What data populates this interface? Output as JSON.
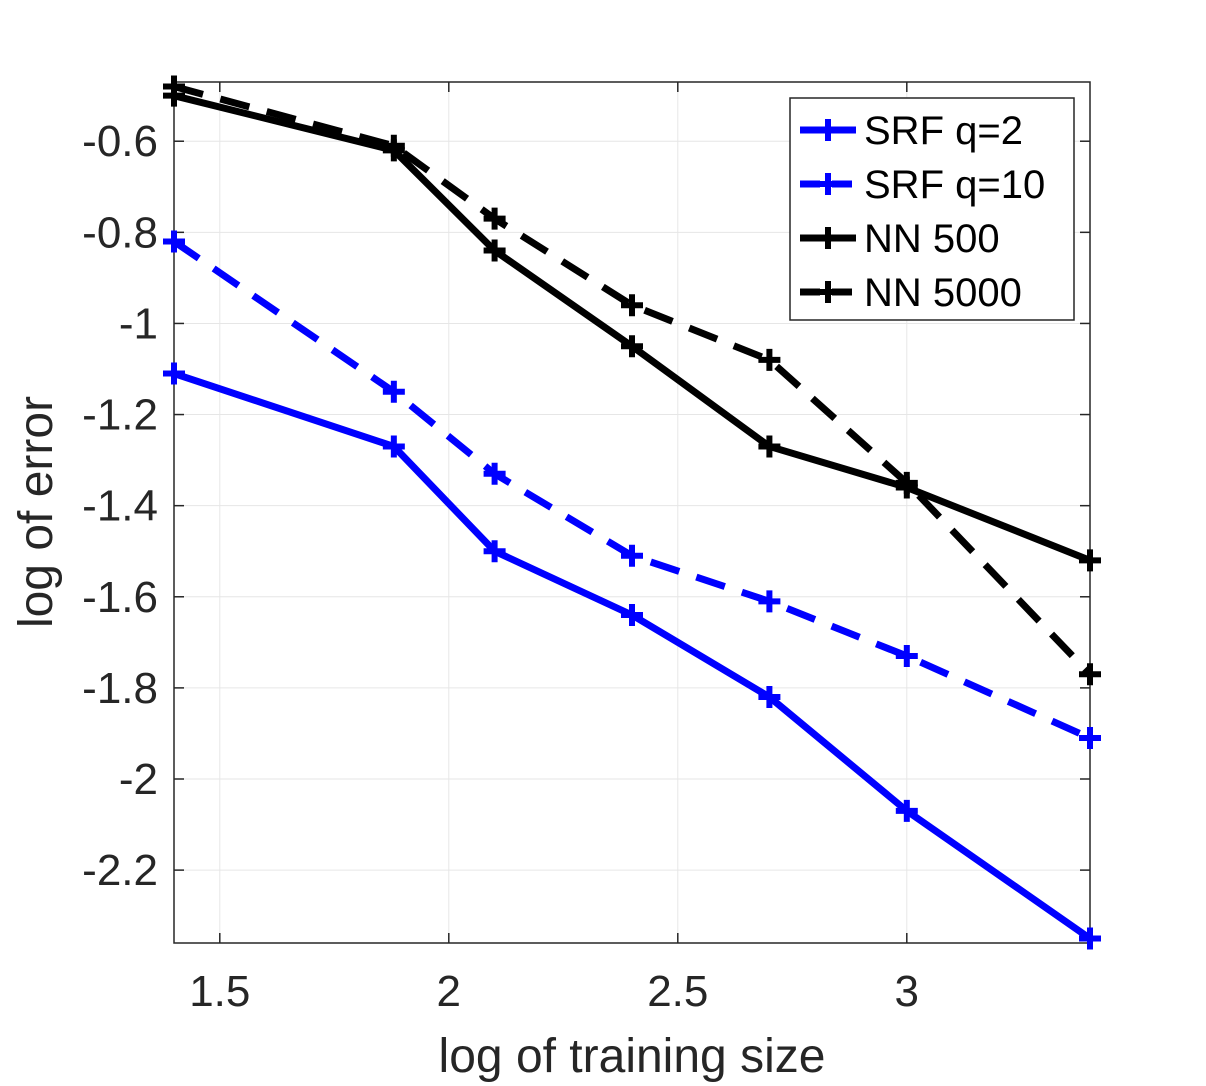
{
  "chart_data": {
    "type": "line",
    "title": "",
    "xlabel": "log of training size",
    "ylabel": "log of error",
    "xlim": [
      1.4,
      3.4
    ],
    "ylim": [
      -2.36,
      -0.47
    ],
    "xticks": [
      1.5,
      2,
      2.5,
      3
    ],
    "xtick_labels": [
      "1.5",
      "2",
      "2.5",
      "3"
    ],
    "yticks": [
      -0.6,
      -0.8,
      -1,
      -1.2,
      -1.4,
      -1.6,
      -1.8,
      -2,
      -2.2
    ],
    "ytick_labels": [
      "-0.6",
      "-0.8",
      "-1",
      "-1.2",
      "-1.4",
      "-1.6",
      "-1.8",
      "-2",
      "-2.2"
    ],
    "grid": true,
    "legend_position": "top-right",
    "x": [
      1.4,
      1.88,
      2.1,
      2.4,
      2.7,
      3.0,
      3.4
    ],
    "series": [
      {
        "name": "SRF q=2",
        "color": "#0000ff",
        "style": "solid",
        "marker": "plus",
        "values": [
          -1.11,
          -1.27,
          -1.5,
          -1.64,
          -1.82,
          -2.07,
          -2.35
        ]
      },
      {
        "name": "SRF q=10",
        "color": "#0000ff",
        "style": "dashed",
        "marker": "plus",
        "values": [
          -0.82,
          -1.15,
          -1.33,
          -1.51,
          -1.61,
          -1.73,
          -1.91
        ]
      },
      {
        "name": "NN 500",
        "color": "#000000",
        "style": "solid",
        "marker": "plus",
        "values": [
          -0.5,
          -0.62,
          -0.84,
          -1.05,
          -1.27,
          -1.36,
          -1.52
        ]
      },
      {
        "name": "NN 5000",
        "color": "#000000",
        "style": "dashed",
        "marker": "plus",
        "values": [
          -0.48,
          -0.61,
          -0.77,
          -0.96,
          -1.08,
          -1.35,
          -1.77
        ]
      }
    ]
  }
}
